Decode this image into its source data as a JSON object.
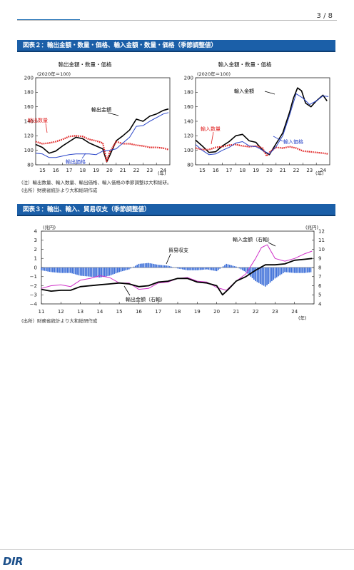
{
  "page": {
    "number": "3 / 8"
  },
  "fig2": {
    "header": "図表２：輸出金額・数量・価格、輸入金額・数量・価格（季節調整値）",
    "left_title": "輸出金額・数量・価格",
    "right_title": "輸入金額・数量・価格",
    "unit": "(2020年＝100)",
    "year_label": "(年)",
    "labels": {
      "export_qty": "輸出数量",
      "export_value": "輸出金額",
      "export_price": "輸出価格",
      "import_value": "輸入金額",
      "import_qty": "輸入数量",
      "import_price": "輸入価格"
    },
    "note": "(注）輸出数量、輸入数量、輸出価格、輸入価格の季節調整は大和総研。",
    "source": "(出所）財務省統計より大和総研作成",
    "colors": {
      "value": "#000000",
      "qty": "#e02020",
      "price": "#2a45c8"
    }
  },
  "fig3": {
    "header": "図表３：輸出、輸入、貿易収支（季節調整値）",
    "left_unit": "(兆円)",
    "right_unit": "(兆円)",
    "year_label": "(年)",
    "labels": {
      "balance": "貿易収支",
      "import_value": "輸入金額（右軸）",
      "export_value": "輸出金額（右軸）"
    },
    "source": "(出所）財務省統計より大和総研作成",
    "colors": {
      "balance": "#3d6fd8",
      "import": "#d030c8",
      "export": "#000000"
    }
  },
  "chart_data": [
    {
      "type": "line",
      "title": "輸出金額・数量・価格",
      "ylabel": "(2020年＝100)",
      "x_ticks": [
        "15",
        "16",
        "17",
        "18",
        "19",
        "20",
        "21",
        "22",
        "23",
        "24"
      ],
      "y_ticks": [
        80,
        100,
        120,
        140,
        160,
        180,
        200
      ],
      "ylim": [
        80,
        200
      ],
      "xlim": [
        2015,
        2025
      ],
      "series": [
        {
          "name": "輸出金額",
          "x": [
            2015,
            2015.5,
            2016,
            2016.5,
            2017,
            2017.5,
            2018,
            2018.5,
            2019,
            2019.5,
            2020,
            2020.3,
            2020.5,
            2021,
            2021.5,
            2022,
            2022.5,
            2023,
            2023.5,
            2024,
            2024.5,
            2024.9
          ],
          "values": [
            108,
            104,
            96,
            99,
            106,
            112,
            118,
            116,
            110,
            106,
            102,
            84,
            92,
            113,
            120,
            128,
            143,
            140,
            147,
            150,
            155,
            157
          ]
        },
        {
          "name": "輸出数量",
          "x": [
            2015,
            2015.5,
            2016,
            2016.5,
            2017,
            2017.5,
            2018,
            2018.5,
            2019,
            2019.5,
            2020,
            2020.3,
            2020.5,
            2021,
            2021.5,
            2022,
            2022.5,
            2023,
            2023.5,
            2024,
            2024.5,
            2024.9
          ],
          "values": [
            112,
            109,
            110,
            112,
            115,
            119,
            120,
            119,
            115,
            113,
            110,
            85,
            97,
            112,
            109,
            109,
            107,
            106,
            104,
            104,
            103,
            101
          ]
        },
        {
          "name": "輸出価格",
          "x": [
            2015,
            2015.5,
            2016,
            2016.5,
            2017,
            2017.5,
            2018,
            2018.5,
            2019,
            2019.5,
            2020,
            2020.5,
            2021,
            2021.5,
            2022,
            2022.5,
            2023,
            2023.5,
            2024,
            2024.5,
            2024.9
          ],
          "values": [
            96,
            95,
            90,
            90,
            92,
            94,
            95,
            95,
            95,
            94,
            99,
            100,
            102,
            110,
            118,
            133,
            134,
            140,
            145,
            150,
            152
          ]
        }
      ]
    },
    {
      "type": "line",
      "title": "輸入金額・数量・価格",
      "ylabel": "(2020年＝100)",
      "x_ticks": [
        "15",
        "16",
        "17",
        "18",
        "19",
        "20",
        "21",
        "22",
        "23",
        "24"
      ],
      "y_ticks": [
        80,
        100,
        120,
        140,
        160,
        180,
        200
      ],
      "ylim": [
        80,
        200
      ],
      "xlim": [
        2015,
        2025
      ],
      "series": [
        {
          "name": "輸入金額",
          "x": [
            2015,
            2015.5,
            2016,
            2016.5,
            2017,
            2017.5,
            2018,
            2018.5,
            2019,
            2019.5,
            2020,
            2020.5,
            2021,
            2021.5,
            2022,
            2022.3,
            2022.6,
            2022.9,
            2023.2,
            2023.6,
            2024,
            2024.5,
            2024.8
          ],
          "values": [
            114,
            106,
            97,
            98,
            106,
            112,
            120,
            122,
            113,
            111,
            100,
            94,
            109,
            124,
            152,
            172,
            186,
            182,
            165,
            160,
            168,
            176,
            168
          ]
        },
        {
          "name": "輸入数量",
          "x": [
            2015,
            2015.5,
            2016,
            2016.5,
            2017,
            2017.5,
            2018,
            2018.5,
            2019,
            2019.5,
            2020,
            2020.3,
            2020.5,
            2021,
            2021.5,
            2022,
            2022.5,
            2023,
            2023.5,
            2024,
            2024.5,
            2024.9
          ],
          "values": [
            103,
            101,
            101,
            104,
            105,
            107,
            108,
            106,
            105,
            106,
            103,
            92,
            97,
            104,
            103,
            105,
            103,
            99,
            98,
            97,
            96,
            95
          ]
        },
        {
          "name": "輸入価格",
          "x": [
            2015,
            2015.5,
            2016,
            2016.5,
            2017,
            2017.5,
            2018,
            2018.5,
            2019,
            2019.5,
            2020,
            2020.5,
            2021,
            2021.5,
            2022,
            2022.5,
            2023,
            2023.5,
            2024,
            2024.5,
            2024.9
          ],
          "values": [
            108,
            100,
            94,
            95,
            100,
            104,
            110,
            112,
            106,
            105,
            100,
            95,
            105,
            120,
            148,
            178,
            172,
            163,
            168,
            175,
            174
          ]
        }
      ]
    },
    {
      "type": "bar+line",
      "title": "",
      "x_ticks": [
        "11",
        "12",
        "13",
        "14",
        "15",
        "16",
        "17",
        "18",
        "19",
        "20",
        "21",
        "22",
        "23",
        "24"
      ],
      "xlim": [
        2011,
        2025
      ],
      "ylim_left": [
        -4,
        4
      ],
      "y_ticks_left": [
        -4,
        -3,
        -2,
        -1,
        0,
        1,
        2,
        3,
        4
      ],
      "ylim_right": [
        4,
        12
      ],
      "y_ticks_right": [
        4,
        5,
        6,
        7,
        8,
        9,
        10,
        11,
        12
      ],
      "series": [
        {
          "name": "貿易収支",
          "type": "bar",
          "axis": "left",
          "x": [
            2011,
            2011.5,
            2012,
            2012.5,
            2013,
            2013.5,
            2014,
            2014.5,
            2015,
            2015.5,
            2016,
            2016.5,
            2017,
            2017.5,
            2018,
            2018.5,
            2019,
            2019.5,
            2020,
            2020.5,
            2021,
            2021.5,
            2022,
            2022.5,
            2023,
            2023.5,
            2024,
            2024.5,
            2024.9
          ],
          "values": [
            -0.3,
            -0.5,
            -0.6,
            -0.6,
            -0.9,
            -1.0,
            -1.1,
            -0.9,
            -0.5,
            -0.2,
            0.4,
            0.5,
            0.3,
            0.2,
            -0.1,
            -0.3,
            -0.3,
            -0.2,
            -0.4,
            0.4,
            0.1,
            -0.5,
            -1.5,
            -2.1,
            -1.2,
            -0.5,
            -0.6,
            -0.6,
            -0.5
          ]
        },
        {
          "name": "輸入金額（右軸）",
          "type": "line",
          "axis": "right",
          "x": [
            2011,
            2011.5,
            2012,
            2012.5,
            2013,
            2013.5,
            2014,
            2014.5,
            2015,
            2015.5,
            2016,
            2016.5,
            2017,
            2017.5,
            2018,
            2018.5,
            2019,
            2019.5,
            2020,
            2020.5,
            2021,
            2021.5,
            2022,
            2022.3,
            2022.6,
            2023,
            2023.5,
            2024,
            2024.5,
            2024.9
          ],
          "values": [
            5.7,
            6.0,
            6.1,
            5.9,
            6.6,
            6.8,
            7.1,
            6.9,
            6.3,
            6.3,
            5.6,
            5.7,
            6.3,
            6.4,
            6.8,
            6.9,
            6.5,
            6.4,
            5.8,
            5.5,
            6.5,
            7.3,
            9.0,
            10.2,
            10.5,
            9.0,
            8.7,
            9.0,
            9.5,
            9.8
          ]
        },
        {
          "name": "輸出金額（右軸）",
          "type": "line",
          "axis": "right",
          "x": [
            2011,
            2011.5,
            2012,
            2012.5,
            2013,
            2013.5,
            2014,
            2014.5,
            2015,
            2015.5,
            2016,
            2016.5,
            2017,
            2017.5,
            2018,
            2018.5,
            2019,
            2019.5,
            2020,
            2020.3,
            2020.6,
            2021,
            2021.5,
            2022,
            2022.5,
            2023,
            2023.5,
            2024,
            2024.5,
            2024.9
          ],
          "values": [
            5.6,
            5.4,
            5.5,
            5.5,
            5.9,
            6.0,
            6.1,
            6.2,
            6.3,
            6.2,
            5.9,
            6.0,
            6.4,
            6.5,
            6.8,
            6.8,
            6.4,
            6.3,
            6.0,
            5.0,
            5.6,
            6.5,
            7.0,
            7.7,
            8.3,
            8.3,
            8.4,
            8.8,
            8.9,
            9.0
          ]
        }
      ]
    }
  ]
}
